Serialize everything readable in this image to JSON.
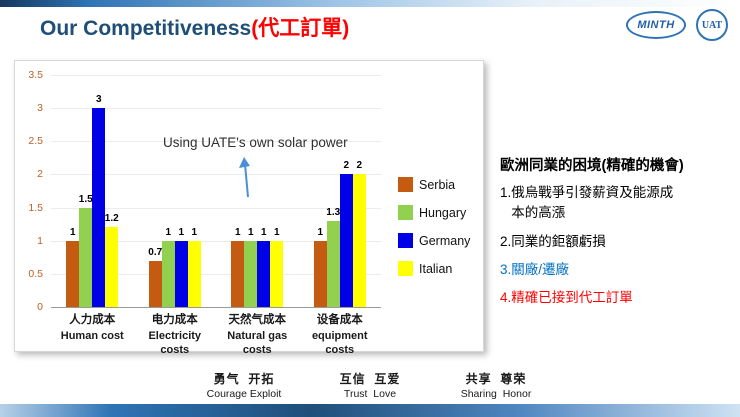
{
  "header": {
    "title_en": "Our Competitiveness",
    "title_zh": "(代工訂單)",
    "logo_minth": "MINTH",
    "logo_uat": "UAT"
  },
  "chart_data": {
    "type": "bar",
    "title": "",
    "categories": [
      {
        "zh": "人力成本",
        "en": "Human cost"
      },
      {
        "zh": "电力成本",
        "en": "Electricity costs"
      },
      {
        "zh": "天然气成本",
        "en": "Natural gas costs"
      },
      {
        "zh": "设备成本",
        "en": "equipment costs"
      }
    ],
    "series": [
      {
        "name": "Serbia",
        "color": "#C55A11",
        "values": [
          1,
          0.7,
          1,
          1
        ]
      },
      {
        "name": "Hungary",
        "color": "#92D050",
        "values": [
          1.5,
          1,
          1,
          1.3
        ]
      },
      {
        "name": "Germany",
        "color": "#0000E6",
        "values": [
          3,
          1,
          1,
          2
        ]
      },
      {
        "name": "Italian",
        "color": "#FFFF00",
        "values": [
          1.2,
          1,
          1,
          2
        ]
      }
    ],
    "ylim": [
      0,
      3.5
    ],
    "ytick_step": 0.5,
    "grid": true,
    "legend_position": "right",
    "annotation": "Using UATE's own solar power"
  },
  "right_panel": {
    "title": "歐洲同業的困境(精確的機會)",
    "items": [
      {
        "text": "1.俄烏戰爭引發薪資及能源成\n   本的高漲",
        "color": "#000000"
      },
      {
        "text": "2.同業的鉅額虧損",
        "color": "#000000"
      },
      {
        "text": "3.關廠/遷廠",
        "color": "#0070C0"
      },
      {
        "text": "4.精確已接到代工訂單",
        "color": "#FF0000"
      }
    ]
  },
  "footer": {
    "values": [
      {
        "zh": "勇气  开拓",
        "en": "Courage Exploit"
      },
      {
        "zh": "互信  互爱",
        "en": "Trust  Love"
      },
      {
        "zh": "共享  尊荣",
        "en": "Sharing  Honor"
      }
    ]
  },
  "colors": {
    "title_blue": "#1F4E79",
    "title_red": "#FF0000",
    "ytick_labels": "#BB6125",
    "annotation_arrow": "#4A90D9"
  }
}
